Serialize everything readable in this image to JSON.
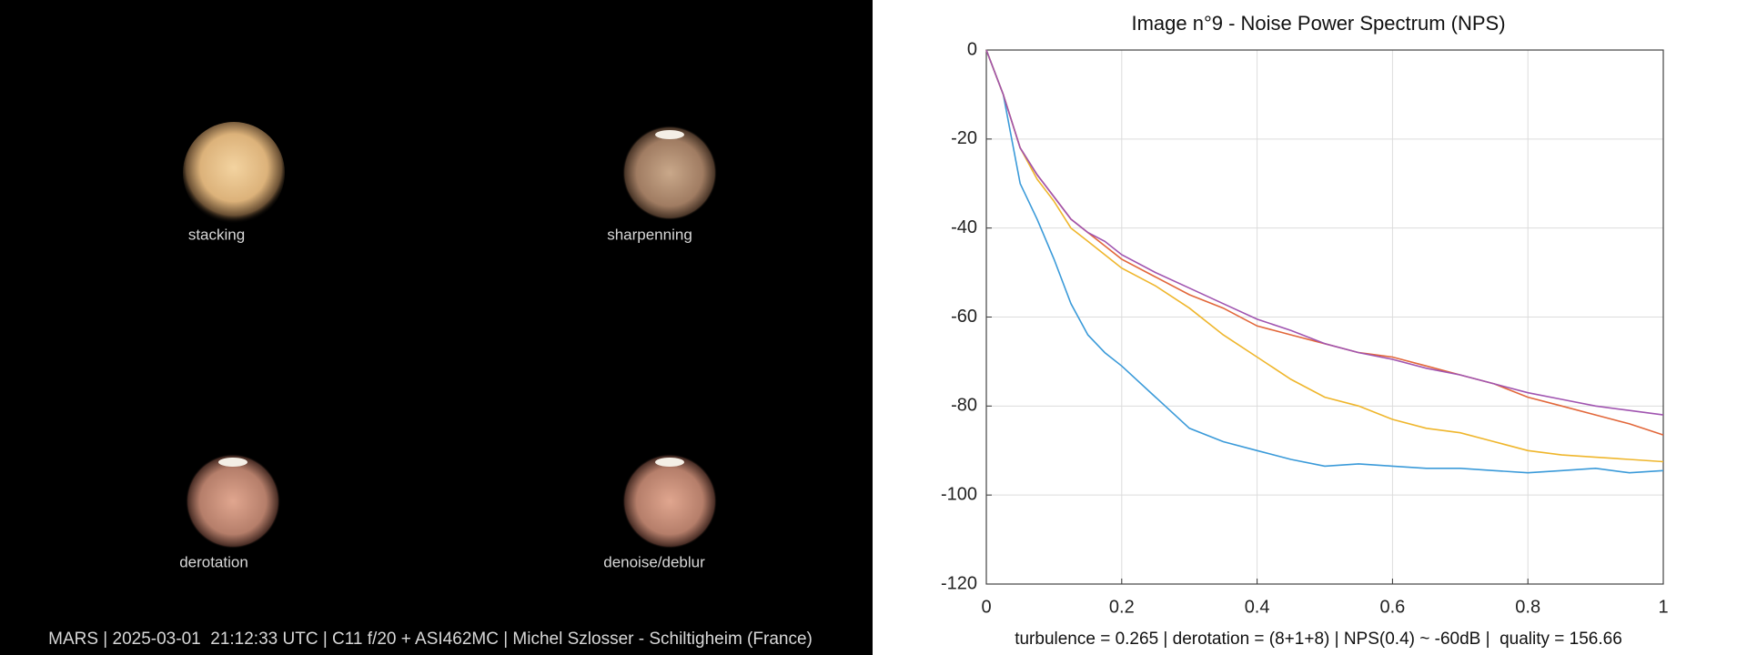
{
  "panels": [
    {
      "label": "stacking"
    },
    {
      "label": "sharpenning"
    },
    {
      "label": "derotation"
    },
    {
      "label": "denoise/deblur"
    }
  ],
  "footer": "MARS | 2025-03-01  21:12:33 UTC | C11 f/20 + ASI462MC | Michel Szlosser - Schiltigheim (France)",
  "chart_data": {
    "type": "line",
    "title": "Image n°9 - Noise Power Spectrum (NPS)",
    "caption": "turbulence = 0.265 | derotation = (8+1+8) | NPS(0.4) ~ -60dB |  quality = 156.66",
    "x": [
      0,
      0.025,
      0.05,
      0.075,
      0.1,
      0.125,
      0.15,
      0.175,
      0.2,
      0.25,
      0.3,
      0.35,
      0.4,
      0.45,
      0.5,
      0.55,
      0.6,
      0.65,
      0.7,
      0.75,
      0.8,
      0.85,
      0.9,
      0.95,
      1
    ],
    "series": [
      {
        "color": "#3a9ad9",
        "values": [
          0,
          -10,
          -30,
          -38,
          -47,
          -57,
          -64,
          -68,
          -71,
          -78,
          -85,
          -88,
          -90,
          -92,
          -93.5,
          -93,
          -93.5,
          -94,
          -94,
          -94.5,
          -95,
          -94.5,
          -94,
          -95,
          -94.5
        ]
      },
      {
        "color": "#e2673a",
        "values": [
          0,
          -10,
          -22,
          -28,
          -33,
          -38,
          -41,
          -44,
          -47,
          -51,
          -55,
          -58,
          -62,
          -64,
          -66,
          -68,
          -69,
          -71,
          -73,
          -75,
          -78,
          -80,
          -82,
          -84,
          -86.5
        ]
      },
      {
        "color": "#efb62c",
        "values": [
          0,
          -10,
          -22,
          -29,
          -34,
          -40,
          -43,
          -46,
          -49,
          -53,
          -58,
          -64,
          -69,
          -74,
          -78,
          -80,
          -83,
          -85,
          -86,
          -88,
          -90,
          -91,
          -91.5,
          -92,
          -92.5
        ]
      },
      {
        "color": "#a054b0",
        "values": [
          0,
          -10,
          -22,
          -28,
          -33,
          -38,
          -41,
          -43,
          -46,
          -50,
          -53.5,
          -57,
          -60.5,
          -63,
          -66,
          -68,
          -69.5,
          -71.5,
          -73,
          -75,
          -77,
          -78.5,
          -80,
          -81,
          -82
        ]
      }
    ],
    "xlim": [
      0,
      1
    ],
    "ylim": [
      -120,
      0
    ],
    "xticks": [
      0,
      0.2,
      0.4,
      0.6,
      0.8,
      1
    ],
    "yticks": [
      0,
      -20,
      -40,
      -60,
      -80,
      -100,
      -120
    ],
    "grid": true
  }
}
